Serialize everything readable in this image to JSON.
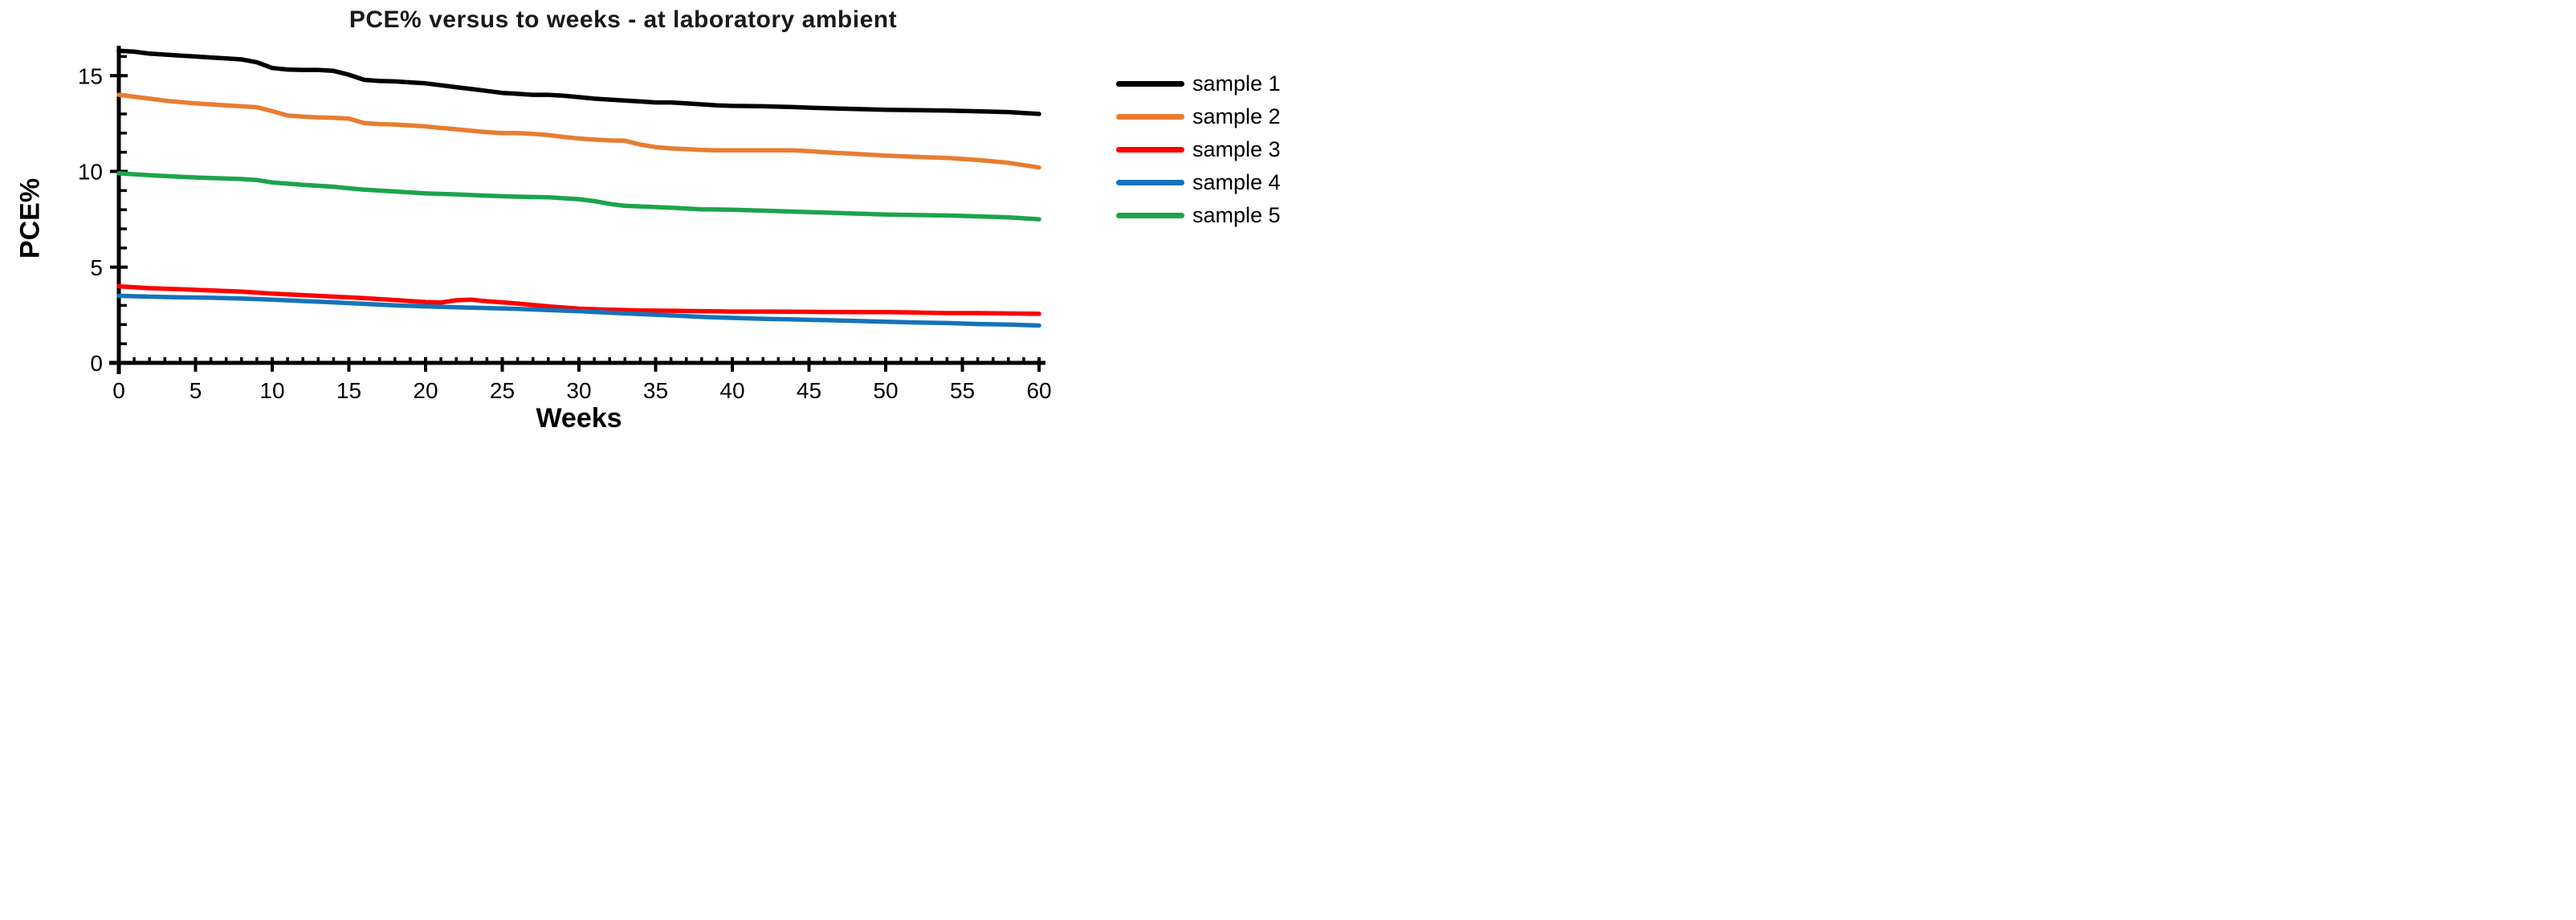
{
  "chart_data": {
    "type": "line",
    "title": "PCE% versus to weeks - at laboratory ambient",
    "xlabel": "Weeks",
    "ylabel": "PCE%",
    "xlim": [
      0,
      60
    ],
    "ylim": [
      0,
      16.5
    ],
    "x_major_ticks": [
      0,
      5,
      10,
      15,
      20,
      25,
      30,
      35,
      40,
      45,
      50,
      55,
      60
    ],
    "x_minor_tick_step": 1,
    "y_major_ticks": [
      0,
      5,
      10,
      15
    ],
    "y_minor_tick_step": 1,
    "grid": false,
    "legend_position": "right",
    "axis_color": "#000000",
    "background_color": "#ffffff",
    "series": [
      {
        "name": "sample 1",
        "color": "#000000",
        "points": [
          [
            0,
            16.3
          ],
          [
            1,
            16.25
          ],
          [
            2,
            16.15
          ],
          [
            3,
            16.1
          ],
          [
            4,
            16.05
          ],
          [
            5,
            16.0
          ],
          [
            6,
            15.95
          ],
          [
            7,
            15.9
          ],
          [
            8,
            15.85
          ],
          [
            9,
            15.7
          ],
          [
            10,
            15.4
          ],
          [
            11,
            15.32
          ],
          [
            12,
            15.3
          ],
          [
            13,
            15.3
          ],
          [
            14,
            15.25
          ],
          [
            15,
            15.05
          ],
          [
            16,
            14.78
          ],
          [
            17,
            14.72
          ],
          [
            18,
            14.7
          ],
          [
            19,
            14.65
          ],
          [
            20,
            14.6
          ],
          [
            21,
            14.5
          ],
          [
            22,
            14.4
          ],
          [
            23,
            14.3
          ],
          [
            24,
            14.2
          ],
          [
            25,
            14.1
          ],
          [
            26,
            14.05
          ],
          [
            27,
            14.0
          ],
          [
            28,
            14.0
          ],
          [
            29,
            13.95
          ],
          [
            30,
            13.88
          ],
          [
            31,
            13.8
          ],
          [
            32,
            13.75
          ],
          [
            33,
            13.7
          ],
          [
            34,
            13.65
          ],
          [
            35,
            13.6
          ],
          [
            36,
            13.6
          ],
          [
            37,
            13.55
          ],
          [
            38,
            13.5
          ],
          [
            39,
            13.45
          ],
          [
            40,
            13.42
          ],
          [
            42,
            13.4
          ],
          [
            44,
            13.36
          ],
          [
            46,
            13.3
          ],
          [
            48,
            13.26
          ],
          [
            50,
            13.22
          ],
          [
            52,
            13.2
          ],
          [
            54,
            13.18
          ],
          [
            56,
            13.14
          ],
          [
            58,
            13.1
          ],
          [
            60,
            13.0
          ]
        ]
      },
      {
        "name": "sample 2",
        "color": "#E87D31",
        "points": [
          [
            0,
            14.0
          ],
          [
            1,
            13.9
          ],
          [
            2,
            13.8
          ],
          [
            3,
            13.7
          ],
          [
            4,
            13.62
          ],
          [
            5,
            13.55
          ],
          [
            6,
            13.5
          ],
          [
            7,
            13.45
          ],
          [
            8,
            13.4
          ],
          [
            9,
            13.35
          ],
          [
            10,
            13.15
          ],
          [
            11,
            12.92
          ],
          [
            12,
            12.86
          ],
          [
            13,
            12.82
          ],
          [
            14,
            12.8
          ],
          [
            15,
            12.76
          ],
          [
            16,
            12.52
          ],
          [
            17,
            12.47
          ],
          [
            18,
            12.45
          ],
          [
            19,
            12.4
          ],
          [
            20,
            12.35
          ],
          [
            21,
            12.27
          ],
          [
            22,
            12.2
          ],
          [
            23,
            12.12
          ],
          [
            24,
            12.05
          ],
          [
            25,
            12.0
          ],
          [
            26,
            12.0
          ],
          [
            27,
            11.96
          ],
          [
            28,
            11.9
          ],
          [
            29,
            11.8
          ],
          [
            30,
            11.72
          ],
          [
            31,
            11.66
          ],
          [
            32,
            11.62
          ],
          [
            33,
            11.6
          ],
          [
            34,
            11.4
          ],
          [
            35,
            11.27
          ],
          [
            36,
            11.2
          ],
          [
            37,
            11.16
          ],
          [
            38,
            11.12
          ],
          [
            39,
            11.1
          ],
          [
            40,
            11.1
          ],
          [
            41,
            11.1
          ],
          [
            42,
            11.1
          ],
          [
            43,
            11.1
          ],
          [
            44,
            11.1
          ],
          [
            45,
            11.06
          ],
          [
            46,
            11.0
          ],
          [
            47,
            10.96
          ],
          [
            48,
            10.92
          ],
          [
            49,
            10.87
          ],
          [
            50,
            10.82
          ],
          [
            52,
            10.76
          ],
          [
            54,
            10.7
          ],
          [
            56,
            10.6
          ],
          [
            58,
            10.45
          ],
          [
            60,
            10.2
          ]
        ]
      },
      {
        "name": "sample 3",
        "color": "#FE0000",
        "points": [
          [
            0,
            4.0
          ],
          [
            2,
            3.9
          ],
          [
            4,
            3.85
          ],
          [
            6,
            3.78
          ],
          [
            8,
            3.72
          ],
          [
            10,
            3.62
          ],
          [
            12,
            3.54
          ],
          [
            14,
            3.46
          ],
          [
            15,
            3.42
          ],
          [
            16,
            3.38
          ],
          [
            18,
            3.28
          ],
          [
            20,
            3.18
          ],
          [
            21,
            3.15
          ],
          [
            22,
            3.27
          ],
          [
            23,
            3.3
          ],
          [
            24,
            3.22
          ],
          [
            25,
            3.16
          ],
          [
            26,
            3.1
          ],
          [
            28,
            2.95
          ],
          [
            30,
            2.83
          ],
          [
            32,
            2.78
          ],
          [
            34,
            2.74
          ],
          [
            36,
            2.72
          ],
          [
            38,
            2.7
          ],
          [
            40,
            2.68
          ],
          [
            42,
            2.68
          ],
          [
            44,
            2.67
          ],
          [
            46,
            2.66
          ],
          [
            48,
            2.65
          ],
          [
            50,
            2.65
          ],
          [
            52,
            2.63
          ],
          [
            54,
            2.6
          ],
          [
            56,
            2.6
          ],
          [
            58,
            2.58
          ],
          [
            60,
            2.56
          ]
        ]
      },
      {
        "name": "sample 4",
        "color": "#1673B9",
        "points": [
          [
            0,
            3.5
          ],
          [
            2,
            3.46
          ],
          [
            4,
            3.42
          ],
          [
            6,
            3.4
          ],
          [
            8,
            3.36
          ],
          [
            10,
            3.3
          ],
          [
            12,
            3.23
          ],
          [
            14,
            3.16
          ],
          [
            16,
            3.08
          ],
          [
            18,
            3.0
          ],
          [
            20,
            2.95
          ],
          [
            22,
            2.9
          ],
          [
            24,
            2.86
          ],
          [
            26,
            2.82
          ],
          [
            28,
            2.76
          ],
          [
            30,
            2.7
          ],
          [
            32,
            2.62
          ],
          [
            34,
            2.55
          ],
          [
            36,
            2.48
          ],
          [
            38,
            2.4
          ],
          [
            40,
            2.35
          ],
          [
            42,
            2.3
          ],
          [
            44,
            2.27
          ],
          [
            46,
            2.23
          ],
          [
            48,
            2.19
          ],
          [
            50,
            2.15
          ],
          [
            52,
            2.11
          ],
          [
            54,
            2.08
          ],
          [
            56,
            2.03
          ],
          [
            58,
            2.0
          ],
          [
            60,
            1.95
          ]
        ]
      },
      {
        "name": "sample 5",
        "color": "#1CA44C",
        "points": [
          [
            0,
            9.9
          ],
          [
            2,
            9.8
          ],
          [
            4,
            9.72
          ],
          [
            6,
            9.65
          ],
          [
            8,
            9.6
          ],
          [
            9,
            9.55
          ],
          [
            10,
            9.42
          ],
          [
            12,
            9.3
          ],
          [
            14,
            9.2
          ],
          [
            15,
            9.12
          ],
          [
            16,
            9.05
          ],
          [
            18,
            8.95
          ],
          [
            20,
            8.85
          ],
          [
            22,
            8.8
          ],
          [
            24,
            8.73
          ],
          [
            26,
            8.68
          ],
          [
            28,
            8.65
          ],
          [
            30,
            8.55
          ],
          [
            31,
            8.45
          ],
          [
            32,
            8.3
          ],
          [
            33,
            8.2
          ],
          [
            34,
            8.17
          ],
          [
            36,
            8.1
          ],
          [
            38,
            8.02
          ],
          [
            40,
            8.0
          ],
          [
            42,
            7.95
          ],
          [
            44,
            7.9
          ],
          [
            46,
            7.85
          ],
          [
            48,
            7.8
          ],
          [
            50,
            7.75
          ],
          [
            52,
            7.72
          ],
          [
            54,
            7.7
          ],
          [
            56,
            7.65
          ],
          [
            58,
            7.6
          ],
          [
            60,
            7.5
          ]
        ]
      }
    ]
  }
}
